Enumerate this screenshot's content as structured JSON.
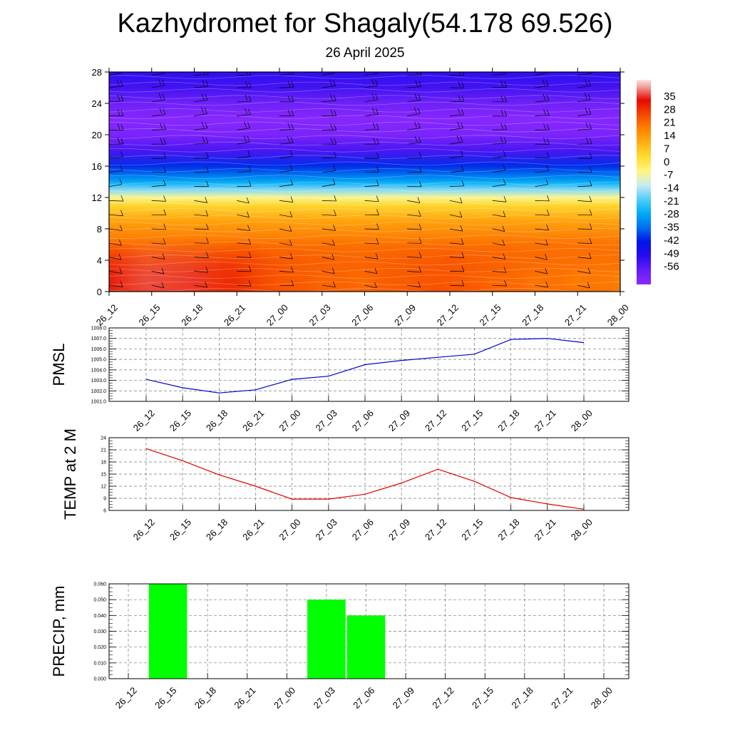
{
  "header": {
    "title": "Kazhydromet for Shagaly(54.178 69.526)",
    "subtitle": "26 April 2025"
  },
  "colors": {
    "pmsl_line": "#0000cc",
    "temp_line": "#e00000",
    "precip_bar": "#00ff00"
  },
  "chart_data": [
    {
      "type": "heatmap",
      "x": [
        "26_12",
        "26_15",
        "26_18",
        "26_21",
        "27_00",
        "27_03",
        "27_06",
        "27_09",
        "27_12",
        "27_15",
        "27_18",
        "27_21",
        "28_00"
      ],
      "yticks": [
        0,
        4,
        8,
        12,
        16,
        20,
        24,
        28
      ],
      "ylim": [
        0,
        28
      ],
      "colorbar_labels": [
        "35",
        "28",
        "21",
        "14",
        "7",
        "0",
        "-7",
        "-14",
        "-21",
        "-28",
        "-35",
        "-42",
        "-49",
        "-56"
      ],
      "colorbar_range": [
        -63,
        38
      ],
      "temperature_profile": [
        {
          "y": 0,
          "v": 22
        },
        {
          "y": 3,
          "v": 20
        },
        {
          "y": 6,
          "v": 16
        },
        {
          "y": 9,
          "v": 9
        },
        {
          "y": 11,
          "v": 1
        },
        {
          "y": 12,
          "v": -8
        },
        {
          "y": 13,
          "v": -18
        },
        {
          "y": 14,
          "v": -28
        },
        {
          "y": 16,
          "v": -40
        },
        {
          "y": 18,
          "v": -53
        },
        {
          "y": 20,
          "v": -60
        },
        {
          "y": 22,
          "v": -62
        },
        {
          "y": 24,
          "v": -58
        },
        {
          "y": 26,
          "v": -52
        },
        {
          "y": 28,
          "v": -50
        }
      ],
      "surface_temperature": [
        28,
        31,
        30,
        25,
        19,
        17,
        16,
        18,
        19,
        17,
        15,
        14,
        13
      ]
    },
    {
      "type": "line",
      "ylabel": "PMSL",
      "x": [
        "26_12",
        "26_15",
        "26_18",
        "26_21",
        "27_00",
        "27_03",
        "27_06",
        "27_09",
        "27_12",
        "27_15",
        "27_18",
        "27_21",
        "28_00"
      ],
      "values": [
        1003.1,
        1002.3,
        1001.8,
        1002.1,
        1003.1,
        1003.4,
        1004.5,
        1004.9,
        1005.2,
        1005.5,
        1006.9,
        1007.0,
        1006.6
      ],
      "yticks": [
        "1001.0",
        "1002.0",
        "1003.0",
        "1004.0",
        "1005.0",
        "1006.0",
        "1007.0",
        "1008.0"
      ],
      "ylim": [
        1001,
        1008
      ],
      "grid": true
    },
    {
      "type": "line",
      "ylabel": "TEMP at 2 M",
      "x": [
        "26_12",
        "26_15",
        "26_18",
        "26_21",
        "27_00",
        "27_03",
        "27_06",
        "27_09",
        "27_12",
        "27_15",
        "27_18",
        "27_21",
        "28_00"
      ],
      "values": [
        21.3,
        18.3,
        14.8,
        12.0,
        8.8,
        8.8,
        10.0,
        12.8,
        16.2,
        13.2,
        9.2,
        7.6,
        6.3
      ],
      "yticks": [
        "6",
        "9",
        "12",
        "15",
        "18",
        "21",
        "24"
      ],
      "ylim": [
        6,
        24
      ],
      "grid": true
    },
    {
      "type": "bar",
      "ylabel": "PRECIP, mm",
      "x": [
        "26_12",
        "26_15",
        "26_18",
        "26_21",
        "27_00",
        "27_03",
        "27_06",
        "27_09",
        "27_12",
        "27_15",
        "27_18",
        "27_21",
        "28_00"
      ],
      "values": [
        0,
        0.06,
        0,
        0,
        0,
        0.05,
        0.04,
        0,
        0,
        0,
        0,
        0,
        0
      ],
      "yticks": [
        "0.000",
        "0.010",
        "0.020",
        "0.030",
        "0.040",
        "0.050",
        "0.060"
      ],
      "ylim": [
        0,
        0.06
      ],
      "grid": true
    }
  ]
}
